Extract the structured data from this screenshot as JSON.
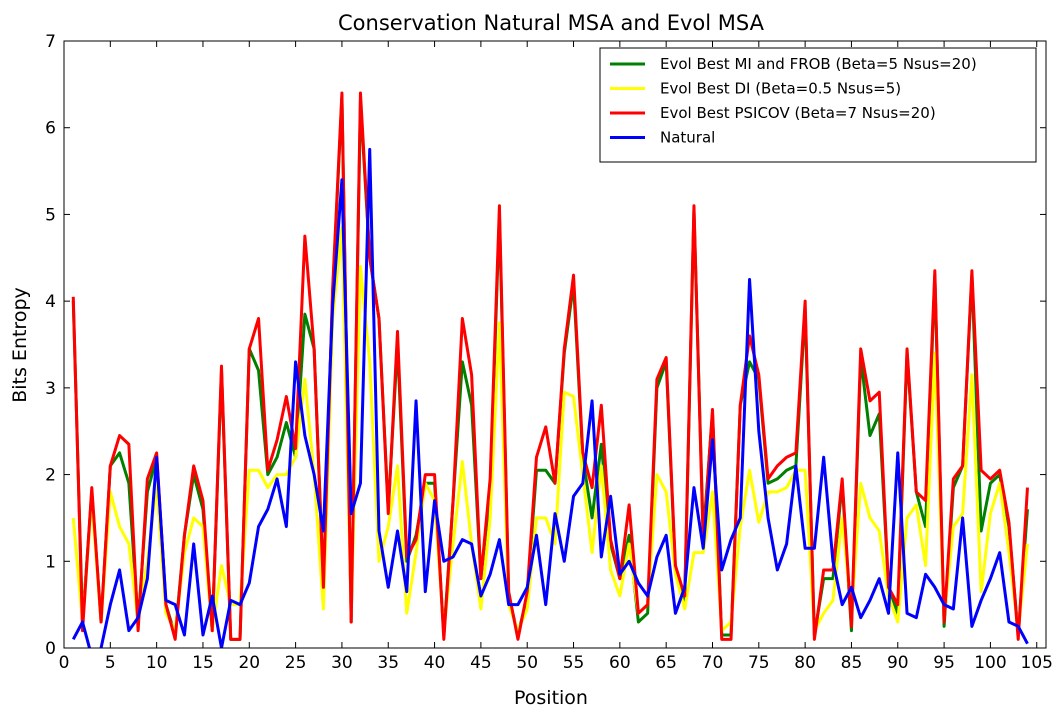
{
  "chart_data": {
    "type": "line",
    "title": "Conservation Natural MSA and Evol MSA",
    "xlabel": "Position",
    "ylabel": "Bits Entropy",
    "xlim": [
      0,
      106
    ],
    "ylim": [
      0,
      7
    ],
    "xticks": [
      0,
      5,
      10,
      15,
      20,
      25,
      30,
      35,
      40,
      45,
      50,
      55,
      60,
      65,
      70,
      75,
      80,
      85,
      90,
      95,
      100,
      105
    ],
    "yticks": [
      0,
      1,
      2,
      3,
      4,
      5,
      6,
      7
    ],
    "grid": false,
    "legend_position": "top-right",
    "x": [
      1,
      2,
      3,
      4,
      5,
      6,
      7,
      8,
      9,
      10,
      11,
      12,
      13,
      14,
      15,
      16,
      17,
      18,
      19,
      20,
      21,
      22,
      23,
      24,
      25,
      26,
      27,
      28,
      29,
      30,
      31,
      32,
      33,
      34,
      35,
      36,
      37,
      38,
      39,
      40,
      41,
      42,
      43,
      44,
      45,
      46,
      47,
      48,
      49,
      50,
      51,
      52,
      53,
      54,
      55,
      56,
      57,
      58,
      59,
      60,
      61,
      62,
      63,
      64,
      65,
      66,
      67,
      68,
      69,
      70,
      71,
      72,
      73,
      74,
      75,
      76,
      77,
      78,
      79,
      80,
      81,
      82,
      83,
      84,
      85,
      86,
      87,
      88,
      89,
      90,
      91,
      92,
      93,
      94,
      95,
      96,
      97,
      98,
      99,
      100,
      101,
      102,
      103,
      104
    ],
    "series": [
      {
        "name": "Evol Best MI and FROB (Beta=5 Nsus=20)",
        "color": "#008000",
        "values": [
          4.0,
          0.3,
          1.8,
          0.3,
          2.1,
          2.25,
          1.9,
          0.3,
          1.8,
          2.2,
          0.5,
          0.15,
          1.3,
          2.0,
          1.6,
          0.2,
          3.2,
          0.1,
          0.1,
          3.45,
          3.2,
          2.0,
          2.2,
          2.6,
          2.2,
          3.85,
          3.45,
          0.75,
          4.1,
          6.35,
          0.3,
          6.3,
          4.5,
          3.8,
          1.6,
          3.5,
          1.0,
          1.3,
          1.9,
          1.9,
          0.15,
          1.7,
          3.3,
          2.8,
          0.8,
          1.8,
          5.0,
          0.6,
          0.15,
          0.6,
          2.05,
          2.05,
          1.9,
          3.4,
          4.2,
          2.2,
          1.5,
          2.35,
          1.2,
          0.8,
          1.3,
          0.3,
          0.4,
          3.0,
          3.3,
          0.9,
          0.55,
          5.05,
          1.3,
          2.7,
          0.15,
          0.15,
          2.8,
          3.3,
          3.1,
          1.9,
          1.95,
          2.05,
          2.1,
          3.9,
          0.15,
          0.8,
          0.8,
          1.9,
          0.2,
          3.35,
          2.45,
          2.7,
          0.7,
          0.4,
          3.4,
          1.8,
          1.4,
          4.3,
          0.25,
          1.85,
          2.1,
          4.3,
          1.35,
          1.9,
          2.0,
          1.4,
          0.15,
          1.6
        ]
      },
      {
        "name": "Evol Best DI (Beta=0.5 Nsus=5)",
        "color": "#ffff00",
        "values": [
          1.5,
          0.3,
          1.7,
          0.3,
          1.8,
          1.4,
          1.2,
          0.3,
          1.0,
          1.9,
          0.4,
          0.2,
          1.1,
          1.5,
          1.4,
          0.2,
          0.95,
          0.5,
          0.5,
          2.05,
          2.05,
          1.85,
          2.0,
          2.0,
          2.2,
          3.1,
          2.0,
          0.45,
          3.8,
          4.85,
          0.4,
          4.4,
          3.3,
          1.0,
          1.4,
          2.1,
          0.4,
          1.1,
          1.9,
          1.7,
          0.2,
          1.2,
          2.15,
          1.2,
          0.45,
          1.5,
          3.75,
          0.5,
          0.2,
          0.45,
          1.5,
          1.5,
          1.2,
          2.95,
          2.9,
          2.0,
          1.1,
          2.1,
          0.9,
          0.6,
          1.2,
          0.4,
          0.5,
          2.0,
          1.8,
          0.85,
          0.45,
          1.1,
          1.1,
          1.8,
          0.2,
          0.3,
          1.4,
          2.05,
          1.45,
          1.8,
          1.8,
          1.85,
          2.05,
          2.05,
          0.2,
          0.4,
          0.55,
          1.5,
          0.4,
          1.9,
          1.5,
          1.35,
          0.6,
          0.3,
          1.5,
          1.65,
          0.95,
          3.4,
          0.35,
          1.4,
          1.55,
          3.15,
          0.65,
          1.55,
          1.9,
          1.1,
          0.2,
          1.2
        ]
      },
      {
        "name": "Evol Best PSICOV (Beta=7 Nsus=20)",
        "color": "#ff0000",
        "values": [
          4.05,
          0.2,
          1.85,
          0.3,
          2.1,
          2.45,
          2.35,
          0.2,
          1.95,
          2.25,
          0.5,
          0.1,
          1.3,
          2.1,
          1.7,
          0.2,
          3.25,
          0.1,
          0.1,
          3.45,
          3.8,
          2.05,
          2.4,
          2.9,
          2.3,
          4.75,
          3.45,
          0.7,
          4.15,
          6.4,
          0.3,
          6.4,
          4.5,
          3.8,
          1.55,
          3.65,
          1.05,
          1.25,
          2.0,
          2.0,
          0.1,
          1.7,
          3.8,
          3.15,
          0.8,
          1.95,
          5.1,
          0.65,
          0.1,
          0.65,
          2.2,
          2.55,
          1.9,
          3.45,
          4.3,
          2.25,
          1.85,
          2.8,
          1.25,
          0.8,
          1.65,
          0.4,
          0.5,
          3.1,
          3.35,
          0.95,
          0.6,
          5.1,
          1.2,
          2.75,
          0.1,
          0.1,
          2.8,
          3.6,
          3.15,
          1.95,
          2.1,
          2.2,
          2.25,
          4.0,
          0.1,
          0.9,
          0.9,
          1.95,
          0.25,
          3.45,
          2.85,
          2.95,
          0.7,
          0.5,
          3.45,
          1.8,
          1.7,
          4.35,
          0.3,
          1.95,
          2.1,
          4.35,
          2.05,
          1.95,
          2.05,
          1.45,
          0.1,
          1.85
        ]
      },
      {
        "name": "Natural",
        "color": "#0000ff",
        "values": [
          0.1,
          0.3,
          -0.1,
          0.0,
          0.5,
          0.9,
          0.2,
          0.35,
          0.8,
          2.2,
          0.55,
          0.5,
          0.15,
          1.2,
          0.15,
          0.6,
          0.0,
          0.55,
          0.5,
          0.75,
          1.4,
          1.6,
          1.95,
          1.4,
          3.3,
          2.45,
          2.0,
          1.35,
          3.95,
          5.4,
          1.55,
          1.9,
          5.75,
          1.35,
          0.7,
          1.35,
          0.65,
          2.85,
          0.65,
          1.7,
          1.0,
          1.05,
          1.25,
          1.2,
          0.6,
          0.85,
          1.25,
          0.5,
          0.5,
          0.7,
          1.3,
          0.5,
          1.55,
          1.0,
          1.75,
          1.9,
          2.85,
          1.05,
          1.75,
          0.85,
          1.0,
          0.75,
          0.6,
          1.05,
          1.3,
          0.4,
          0.7,
          1.85,
          1.15,
          2.4,
          0.9,
          1.25,
          1.5,
          4.25,
          2.5,
          1.5,
          0.9,
          1.2,
          2.1,
          1.15,
          1.15,
          2.2,
          1.0,
          0.5,
          0.7,
          0.35,
          0.55,
          0.8,
          0.4,
          2.25,
          0.4,
          0.35,
          0.85,
          0.7,
          0.5,
          0.45,
          1.5,
          0.25,
          0.55,
          0.8,
          1.1,
          0.3,
          0.25,
          0.05
        ]
      }
    ]
  }
}
